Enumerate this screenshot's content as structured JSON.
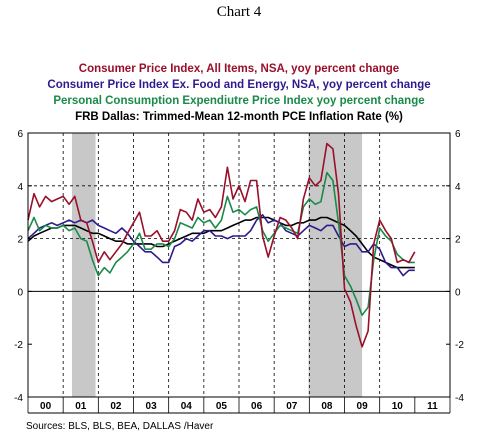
{
  "chart_data": {
    "type": "line",
    "title": "Chart 4",
    "x_tick_labels": [
      "00",
      "01",
      "02",
      "03",
      "04",
      "05",
      "06",
      "07",
      "08",
      "09",
      "10",
      "11"
    ],
    "y_ticks": [
      -4,
      -2,
      0,
      2,
      4,
      6
    ],
    "y_tick_labels": [
      "-4",
      "-2",
      "0",
      "2",
      "4",
      "6"
    ],
    "y_range": [
      -4,
      6
    ],
    "x_range": [
      2000.0,
      2012.0
    ],
    "shaded_periods": [
      [
        2001.25,
        2001.92
      ],
      [
        2007.98,
        2009.5
      ]
    ],
    "grid": "vertical dashed at years 2001-2010, horizontal dashed at 2 and 4, solid zero line",
    "legend_placement": "top, stacked above plot",
    "source": "Sources:  BLS, BLS, BEA, DALLAS /Haver",
    "series": [
      {
        "name": "Consumer Price Index, All Items, NSA, yoy percent change",
        "color": "#9a0f2a",
        "x": [
          2000.0,
          2000.17,
          2000.33,
          2000.5,
          2000.67,
          2000.83,
          2001.0,
          2001.17,
          2001.33,
          2001.5,
          2001.67,
          2001.83,
          2002.0,
          2002.17,
          2002.33,
          2002.5,
          2002.67,
          2002.83,
          2003.0,
          2003.17,
          2003.33,
          2003.5,
          2003.67,
          2003.83,
          2004.0,
          2004.17,
          2004.33,
          2004.5,
          2004.67,
          2004.83,
          2005.0,
          2005.17,
          2005.33,
          2005.5,
          2005.67,
          2005.83,
          2006.0,
          2006.17,
          2006.33,
          2006.5,
          2006.67,
          2006.83,
          2007.0,
          2007.17,
          2007.33,
          2007.5,
          2007.67,
          2007.83,
          2008.0,
          2008.17,
          2008.33,
          2008.5,
          2008.67,
          2008.83,
          2009.0,
          2009.17,
          2009.33,
          2009.5,
          2009.67,
          2009.83,
          2010.0,
          2010.17,
          2010.33,
          2010.5,
          2010.67,
          2010.83,
          2011.0
        ],
        "y": [
          2.7,
          3.7,
          3.2,
          3.6,
          3.4,
          3.5,
          3.6,
          3.3,
          3.6,
          2.7,
          2.6,
          1.9,
          1.1,
          1.5,
          1.2,
          1.5,
          1.8,
          2.2,
          2.6,
          3.0,
          2.1,
          2.1,
          2.3,
          1.9,
          1.9,
          2.3,
          3.1,
          3.0,
          2.7,
          3.5,
          3.0,
          3.1,
          2.8,
          3.2,
          4.7,
          3.5,
          4.0,
          3.4,
          4.2,
          4.2,
          2.1,
          1.3,
          2.1,
          2.8,
          2.7,
          2.4,
          2.0,
          3.5,
          4.3,
          4.0,
          4.2,
          5.6,
          5.4,
          3.7,
          0.1,
          -0.4,
          -1.3,
          -2.1,
          -1.5,
          1.8,
          2.7,
          2.3,
          2.0,
          1.1,
          1.2,
          1.1,
          1.5
        ]
      },
      {
        "name": "Consumer Price Index Ex. Food and Energy, NSA, yoy percent change",
        "color": "#2e1a8c",
        "x": [
          2000.0,
          2000.17,
          2000.33,
          2000.5,
          2000.67,
          2000.83,
          2001.0,
          2001.17,
          2001.33,
          2001.5,
          2001.67,
          2001.83,
          2002.0,
          2002.17,
          2002.33,
          2002.5,
          2002.67,
          2002.83,
          2003.0,
          2003.17,
          2003.33,
          2003.5,
          2003.67,
          2003.83,
          2004.0,
          2004.17,
          2004.33,
          2004.5,
          2004.67,
          2004.83,
          2005.0,
          2005.17,
          2005.33,
          2005.5,
          2005.67,
          2005.83,
          2006.0,
          2006.17,
          2006.33,
          2006.5,
          2006.67,
          2006.83,
          2007.0,
          2007.17,
          2007.33,
          2007.5,
          2007.67,
          2007.83,
          2008.0,
          2008.17,
          2008.33,
          2008.5,
          2008.67,
          2008.83,
          2009.0,
          2009.17,
          2009.33,
          2009.5,
          2009.67,
          2009.83,
          2010.0,
          2010.17,
          2010.33,
          2010.5,
          2010.67,
          2010.83,
          2011.0
        ],
        "y": [
          2.0,
          2.2,
          2.4,
          2.5,
          2.6,
          2.5,
          2.6,
          2.7,
          2.6,
          2.7,
          2.6,
          2.7,
          2.5,
          2.4,
          2.3,
          2.2,
          2.4,
          2.2,
          1.9,
          1.7,
          1.5,
          1.5,
          1.3,
          1.1,
          1.1,
          1.7,
          1.8,
          2.0,
          1.9,
          2.1,
          2.3,
          2.3,
          2.1,
          2.1,
          2.0,
          2.1,
          2.1,
          2.1,
          2.3,
          2.7,
          2.9,
          2.6,
          2.7,
          2.6,
          2.3,
          2.2,
          2.1,
          2.3,
          2.5,
          2.4,
          2.3,
          2.5,
          2.5,
          2.1,
          1.7,
          1.8,
          1.8,
          1.5,
          1.5,
          1.8,
          1.6,
          1.1,
          0.9,
          0.9,
          0.6,
          0.8,
          0.8
        ]
      },
      {
        "name": "Personal Consumption Expendiutre Price Index  yoy  percent change",
        "color": "#1a8a4a",
        "x": [
          2000.0,
          2000.17,
          2000.33,
          2000.5,
          2000.67,
          2000.83,
          2001.0,
          2001.17,
          2001.33,
          2001.5,
          2001.67,
          2001.83,
          2002.0,
          2002.17,
          2002.33,
          2002.5,
          2002.67,
          2002.83,
          2003.0,
          2003.17,
          2003.33,
          2003.5,
          2003.67,
          2003.83,
          2004.0,
          2004.17,
          2004.33,
          2004.5,
          2004.67,
          2004.83,
          2005.0,
          2005.17,
          2005.33,
          2005.5,
          2005.67,
          2005.83,
          2006.0,
          2006.17,
          2006.33,
          2006.5,
          2006.67,
          2006.83,
          2007.0,
          2007.17,
          2007.33,
          2007.5,
          2007.67,
          2007.83,
          2008.0,
          2008.17,
          2008.33,
          2008.5,
          2008.67,
          2008.83,
          2009.0,
          2009.17,
          2009.33,
          2009.5,
          2009.67,
          2009.83,
          2010.0,
          2010.17,
          2010.33,
          2010.5,
          2010.67,
          2010.83,
          2011.0
        ],
        "y": [
          2.3,
          2.8,
          2.3,
          2.5,
          2.4,
          2.4,
          2.5,
          2.3,
          2.4,
          2.0,
          1.9,
          1.2,
          0.6,
          0.9,
          0.7,
          1.1,
          1.3,
          1.5,
          1.8,
          2.2,
          1.6,
          1.6,
          1.8,
          1.8,
          1.7,
          2.0,
          2.6,
          2.5,
          2.4,
          2.8,
          2.6,
          2.7,
          2.4,
          2.7,
          3.6,
          3.0,
          3.1,
          2.9,
          3.1,
          3.2,
          2.3,
          1.9,
          2.2,
          2.5,
          2.4,
          2.3,
          2.2,
          3.2,
          3.5,
          3.3,
          3.4,
          4.5,
          4.2,
          2.6,
          0.6,
          0.2,
          -0.3,
          -0.9,
          -0.6,
          1.2,
          2.4,
          2.1,
          1.9,
          1.4,
          1.2,
          1.1,
          1.1
        ]
      },
      {
        "name": "FRB Dallas: Trimmed-Mean 12-month PCE Inflation Rate (%)",
        "color": "#000000",
        "x": [
          2000.0,
          2000.17,
          2000.33,
          2000.5,
          2000.67,
          2000.83,
          2001.0,
          2001.17,
          2001.33,
          2001.5,
          2001.67,
          2001.83,
          2002.0,
          2002.17,
          2002.33,
          2002.5,
          2002.67,
          2002.83,
          2003.0,
          2003.17,
          2003.33,
          2003.5,
          2003.67,
          2003.83,
          2004.0,
          2004.17,
          2004.33,
          2004.5,
          2004.67,
          2004.83,
          2005.0,
          2005.17,
          2005.33,
          2005.5,
          2005.67,
          2005.83,
          2006.0,
          2006.17,
          2006.33,
          2006.5,
          2006.67,
          2006.83,
          2007.0,
          2007.17,
          2007.33,
          2007.5,
          2007.67,
          2007.83,
          2008.0,
          2008.17,
          2008.33,
          2008.5,
          2008.67,
          2008.83,
          2009.0,
          2009.17,
          2009.33,
          2009.5,
          2009.67,
          2009.83,
          2010.0,
          2010.17,
          2010.33,
          2010.5,
          2010.67,
          2010.83,
          2011.0
        ],
        "y": [
          1.9,
          2.1,
          2.2,
          2.3,
          2.4,
          2.4,
          2.5,
          2.5,
          2.5,
          2.4,
          2.3,
          2.2,
          2.2,
          2.1,
          2.0,
          1.9,
          1.9,
          1.8,
          1.8,
          1.8,
          1.8,
          1.8,
          1.7,
          1.7,
          1.8,
          1.9,
          2.0,
          2.1,
          2.2,
          2.2,
          2.2,
          2.3,
          2.3,
          2.3,
          2.4,
          2.5,
          2.6,
          2.7,
          2.7,
          2.8,
          2.8,
          2.8,
          2.7,
          2.6,
          2.5,
          2.5,
          2.6,
          2.6,
          2.7,
          2.7,
          2.8,
          2.8,
          2.7,
          2.6,
          2.5,
          2.3,
          2.1,
          1.8,
          1.5,
          1.3,
          1.2,
          1.1,
          1.0,
          0.9,
          0.9,
          0.9,
          0.9
        ]
      }
    ]
  }
}
